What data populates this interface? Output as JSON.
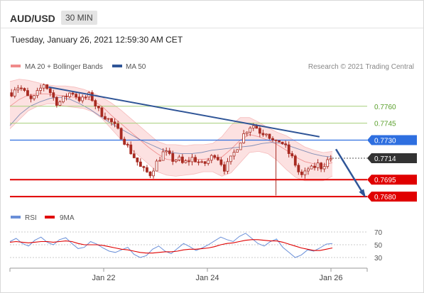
{
  "header": {
    "symbol": "AUD/USD",
    "timeframe": "30 MIN",
    "datetime": "Tuesday, January 26, 2021 12:59:30 AM CET"
  },
  "legend": {
    "ma20_label": "MA 20 + Bollinger Bands",
    "ma50_label": "MA 50",
    "credit": "Research © 2021 Trading Central",
    "rsi_label": "RSI",
    "nine_ma_label": "9MA"
  },
  "colors": {
    "candle": "#a82b22",
    "bollinger_fill": "#fbdcdc",
    "ma20": "#f08a8a",
    "ma50": "#2f5597",
    "trendline": "#2f5597",
    "green_level": "#a6cf7a",
    "blue_level": "#2e6fe0",
    "red_level": "#e00000",
    "dotted_level": "#555555",
    "rsi": "#6a8fd8",
    "nine_ma": "#e00000"
  },
  "chart_data": [
    {
      "type": "candlestick",
      "x_labels": [
        "Jan 22",
        "Jan 24",
        "Jan 26"
      ],
      "ylim": [
        0.767,
        0.7785
      ],
      "levels": [
        {
          "value": 0.776,
          "label": "0.7760",
          "style": "green"
        },
        {
          "value": 0.7745,
          "label": "0.7745",
          "style": "green"
        },
        {
          "value": 0.773,
          "label": "0.7730",
          "style": "blue"
        },
        {
          "value": 0.7714,
          "label": "0.7714",
          "style": "current"
        },
        {
          "value": 0.7695,
          "label": "0.7695",
          "style": "red"
        },
        {
          "value": 0.768,
          "label": "0.7680",
          "style": "red"
        }
      ],
      "close_path": [
        0.7772,
        0.7778,
        0.7776,
        0.7771,
        0.7765,
        0.7768,
        0.7774,
        0.778,
        0.7775,
        0.7768,
        0.7762,
        0.7766,
        0.777,
        0.7773,
        0.7769,
        0.7765,
        0.7768,
        0.777,
        0.7762,
        0.7755,
        0.7752,
        0.7748,
        0.7744,
        0.7738,
        0.7732,
        0.7725,
        0.7718,
        0.7712,
        0.7705,
        0.7702,
        0.77,
        0.7708,
        0.7714,
        0.772,
        0.7716,
        0.7712,
        0.7714,
        0.7709,
        0.7711,
        0.7714,
        0.7712,
        0.7708,
        0.771,
        0.7714,
        0.7718,
        0.7712,
        0.7705,
        0.771,
        0.7718,
        0.7726,
        0.7734,
        0.774,
        0.7744,
        0.7741,
        0.7736,
        0.7738,
        0.7732,
        0.7726,
        0.773,
        0.7725,
        0.7718,
        0.7712,
        0.7702,
        0.7697,
        0.7705,
        0.7704,
        0.7709,
        0.7706,
        0.7711,
        0.7714
      ],
      "ma20_path": [
        0.776,
        0.7766,
        0.777,
        0.7771,
        0.7771,
        0.777,
        0.7769,
        0.7768,
        0.7767,
        0.7765,
        0.776,
        0.7752,
        0.7745,
        0.7738,
        0.7731,
        0.7724,
        0.7718,
        0.7713,
        0.7712,
        0.7712,
        0.7713,
        0.7713,
        0.7714,
        0.7715,
        0.7722,
        0.773,
        0.7735,
        0.7733,
        0.773,
        0.7726,
        0.7721,
        0.7715,
        0.7711,
        0.7709,
        0.7708,
        0.771
      ],
      "bb_upper": [
        0.7782,
        0.7784,
        0.7783,
        0.7781,
        0.7779,
        0.7778,
        0.7778,
        0.7777,
        0.7775,
        0.7772,
        0.7768,
        0.7763,
        0.7757,
        0.775,
        0.7743,
        0.7736,
        0.7729,
        0.7726,
        0.7726,
        0.7725,
        0.7726,
        0.7726,
        0.7727,
        0.7733,
        0.7743,
        0.775,
        0.775,
        0.7746,
        0.7741,
        0.7737,
        0.7734,
        0.7729,
        0.7724,
        0.7721,
        0.7719,
        0.772
      ],
      "bb_lower": [
        0.774,
        0.7748,
        0.7756,
        0.776,
        0.7762,
        0.7762,
        0.776,
        0.7759,
        0.7758,
        0.7755,
        0.7749,
        0.774,
        0.7731,
        0.7723,
        0.7716,
        0.7709,
        0.7702,
        0.7699,
        0.7698,
        0.7699,
        0.77,
        0.7702,
        0.7702,
        0.7698,
        0.7701,
        0.771,
        0.7719,
        0.772,
        0.7718,
        0.7712,
        0.7704,
        0.7697,
        0.7694,
        0.7694,
        0.7694,
        0.7698
      ],
      "ma50_path": [
        0.7743,
        0.7753,
        0.776,
        0.7764,
        0.7767,
        0.7768,
        0.7766,
        0.7762,
        0.7757,
        0.7751,
        0.7745,
        0.774,
        0.7735,
        0.773,
        0.7726,
        0.7722,
        0.7719,
        0.7718,
        0.7718,
        0.7719,
        0.7721,
        0.7722,
        0.7723,
        0.7724,
        0.7725,
        0.7727,
        0.7728,
        0.7727,
        0.7724,
        0.7721,
        0.7718,
        0.7716,
        0.7715
      ],
      "trendline": [
        {
          "x_frac": 0.12,
          "y": 0.7777
        },
        {
          "x_frac": 0.96,
          "y": 0.7733
        }
      ],
      "forecast_arrow": [
        {
          "x_frac": 0.96,
          "y": 0.7722
        },
        {
          "x_frac": 1.0,
          "y": 0.7681
        }
      ]
    },
    {
      "type": "line",
      "title": "RSI",
      "ylim": [
        20,
        80
      ],
      "y_ticks": [
        70,
        50,
        30
      ],
      "series": [
        {
          "name": "RSI",
          "values": [
            55,
            60,
            52,
            48,
            57,
            62,
            54,
            50,
            58,
            61,
            52,
            44,
            46,
            55,
            51,
            45,
            40,
            38,
            42,
            46,
            35,
            30,
            33,
            43,
            48,
            40,
            36,
            44,
            52,
            47,
            41,
            45,
            50,
            56,
            62,
            58,
            55,
            63,
            68,
            60,
            52,
            48,
            55,
            59,
            46,
            38,
            30,
            34,
            42,
            40,
            45,
            51,
            52
          ]
        },
        {
          "name": "9MA",
          "values": [
            54,
            55,
            54,
            53,
            54,
            55,
            55,
            54,
            55,
            56,
            55,
            52,
            50,
            50,
            50,
            49,
            47,
            45,
            43,
            42,
            40,
            38,
            37,
            37,
            38,
            39,
            39,
            40,
            42,
            43,
            43,
            44,
            45,
            47,
            50,
            52,
            53,
            55,
            57,
            58,
            58,
            57,
            56,
            56,
            54,
            51,
            48,
            45,
            43,
            41,
            41,
            43,
            45
          ]
        }
      ]
    }
  ]
}
